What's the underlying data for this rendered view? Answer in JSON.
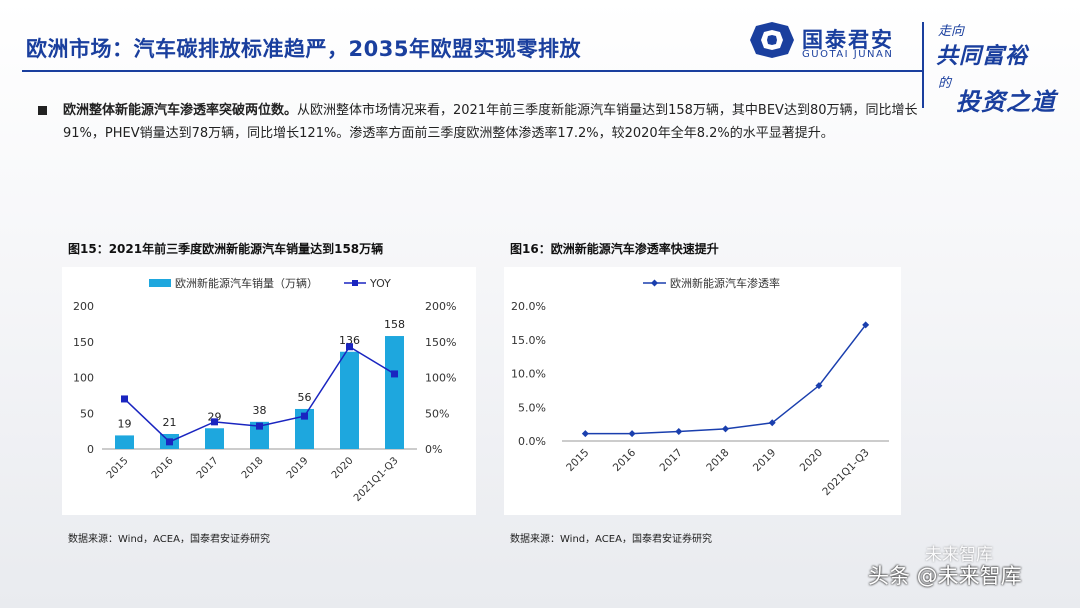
{
  "header": {
    "title": "欧洲市场：汽车碳排放标准趋严，2035年欧盟实现零排放",
    "logo_cn": "国泰君安",
    "logo_en": "GUOTAI JUNAN",
    "slogan_1": "走向",
    "slogan_2": "共同富裕",
    "slogan_3": "的",
    "slogan_4": "投资之道"
  },
  "bullet": {
    "bold": "欧洲整体新能源汽车渗透率突破两位数。",
    "text": "从欧洲整体市场情况来看，2021年前三季度新能源汽车销量达到158万辆，其中BEV达到80万辆，同比增长91%，PHEV销量达到78万辆，同比增长121%。渗透率方面前三季度欧洲整体渗透率17.2%，较2020年全年8.2%的水平显著提升。"
  },
  "watermark": {
    "text": "头条 @未来智库",
    "text2": "未来智库"
  },
  "colors": {
    "brand_blue": "#1a3f9e",
    "bar_color": "#1ea7de",
    "yoy_color": "#1a25c0",
    "line_color": "#1a3fae"
  },
  "chart_data": [
    {
      "type": "bar",
      "title": "图15：2021年前三季度欧洲新能源汽车销量达到158万辆",
      "categories": [
        "2015",
        "2016",
        "2017",
        "2018",
        "2019",
        "2020",
        "2021Q1-Q3"
      ],
      "series": [
        {
          "name": "欧洲新能源汽车销量（万辆）",
          "type": "bar",
          "axis": "left",
          "values": [
            19,
            21,
            29,
            38,
            56,
            136,
            158
          ]
        },
        {
          "name": "YOY",
          "type": "line",
          "axis": "right",
          "values": [
            0.7,
            0.1,
            0.38,
            0.32,
            0.46,
            1.43,
            1.05
          ]
        }
      ],
      "y_left": {
        "min": 0,
        "max": 200,
        "ticks": [
          "0",
          "50",
          "100",
          "150",
          "200"
        ]
      },
      "y_right": {
        "min": 0,
        "max": 2,
        "ticks": [
          "0%",
          "50%",
          "100%",
          "150%",
          "200%"
        ]
      },
      "data_labels": [
        "19",
        "21",
        "29",
        "38",
        "56",
        "136",
        "158"
      ],
      "legend": "top",
      "source": "数据来源：Wind，ACEA，国泰君安证券研究"
    },
    {
      "type": "line",
      "title": "图16：欧洲新能源汽车渗透率快速提升",
      "categories": [
        "2015",
        "2016",
        "2017",
        "2018",
        "2019",
        "2020",
        "2021Q1-Q3"
      ],
      "series": [
        {
          "name": "欧洲新能源汽车渗透率",
          "values": [
            0.011,
            0.011,
            0.014,
            0.018,
            0.027,
            0.082,
            0.172
          ]
        }
      ],
      "y": {
        "min": 0,
        "max": 0.2,
        "ticks": [
          "0.0%",
          "5.0%",
          "10.0%",
          "15.0%",
          "20.0%"
        ]
      },
      "legend": "top",
      "source": "数据来源：Wind，ACEA，国泰君安证券研究"
    }
  ]
}
